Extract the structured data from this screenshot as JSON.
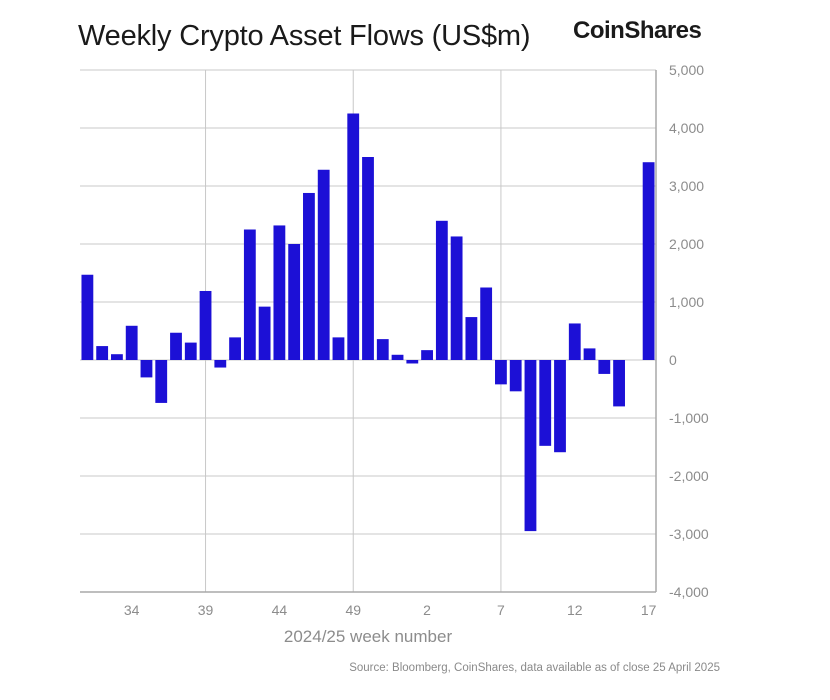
{
  "header": {
    "title": "Weekly Crypto Asset Flows (US$m)",
    "brand": "CoinShares"
  },
  "footer": {
    "source": "Source: Bloomberg, CoinShares, data available as of close 25 April 2025"
  },
  "colors": {
    "bar": "#1c10d6",
    "grid": "#c8c8c8",
    "axis": "#a8a8a8",
    "text": "#8c8c8c"
  },
  "chart_data": {
    "type": "bar",
    "title": "Weekly Crypto Asset Flows (US$m)",
    "xlabel": "2024/25 week number",
    "ylabel": "",
    "ylim": [
      -4000,
      5000
    ],
    "yticks": [
      5000,
      4000,
      3000,
      2000,
      1000,
      0,
      -1000,
      -2000,
      -3000,
      -4000
    ],
    "ytick_labels": [
      "5,000",
      "4,000",
      "3,000",
      "2,000",
      "1,000",
      "0",
      "-1,000",
      "-2,000",
      "-3,000",
      "-4,000"
    ],
    "categories": [
      "31",
      "32",
      "33",
      "34",
      "35",
      "36",
      "37",
      "38",
      "39",
      "40",
      "41",
      "42",
      "43",
      "44",
      "45",
      "46",
      "47",
      "48",
      "49",
      "50",
      "51",
      "52",
      "1",
      "2",
      "3",
      "4",
      "5",
      "6",
      "7",
      "8",
      "9",
      "10",
      "11",
      "12",
      "13",
      "14",
      "15",
      "16",
      "17"
    ],
    "values": [
      1470,
      240,
      100,
      590,
      -300,
      -740,
      470,
      300,
      1190,
      -130,
      390,
      2250,
      920,
      2320,
      2000,
      2880,
      3280,
      390,
      4250,
      3500,
      360,
      90,
      -60,
      170,
      2400,
      2130,
      740,
      1250,
      -420,
      -540,
      -2950,
      -1480,
      -1590,
      630,
      200,
      -240,
      -800,
      0,
      3410
    ],
    "xtick_labels": [
      "34",
      "39",
      "44",
      "49",
      "2",
      "7",
      "12",
      "17"
    ],
    "xtick_indices": [
      3,
      8,
      13,
      18,
      23,
      28,
      33,
      38
    ],
    "vgrid_indices": [
      8,
      18,
      28
    ]
  }
}
